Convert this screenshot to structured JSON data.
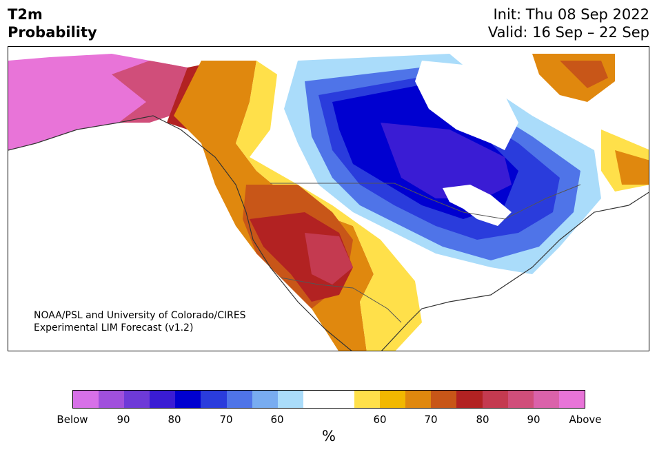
{
  "header": {
    "title_line1": "T2m",
    "title_line2": "Probability",
    "init": "Init: Thu 08 Sep 2022",
    "valid": "Valid: 16 Sep – 22 Sep"
  },
  "credit": {
    "line1": "NOAA/PSL and University of Colorado/CIRES",
    "line2": "Experimental LIM Forecast (v1.2)"
  },
  "colorbar": {
    "colors": [
      "#d770e8",
      "#a050dc",
      "#6e3ad8",
      "#3a1cd4",
      "#0000d0",
      "#2a3cdc",
      "#4f74e8",
      "#78acf0",
      "#aadcfa",
      "#ffffff",
      "#ffffff",
      "#ffe04a",
      "#f2b800",
      "#e0880e",
      "#c85618",
      "#b22222",
      "#c43a50",
      "#d04e7a",
      "#da62aa",
      "#e874d8"
    ],
    "tick_labels": [
      "Below",
      "90",
      "80",
      "70",
      "60",
      "60",
      "70",
      "80",
      "90",
      "Above"
    ],
    "unit": "%"
  },
  "map_colors": {
    "above_90": "#e874d8",
    "above_80": "#c43a50",
    "above_70": "#b22222",
    "above_65": "#c85618",
    "above_60": "#e0880e",
    "above_55": "#f2b800",
    "above_50": "#ffe04a",
    "below_50": "#aadcfa",
    "below_55": "#78acf0",
    "below_60": "#4f74e8",
    "below_65": "#2a3cdc",
    "below_70": "#0000d0",
    "below_75": "#3a1cd4"
  }
}
